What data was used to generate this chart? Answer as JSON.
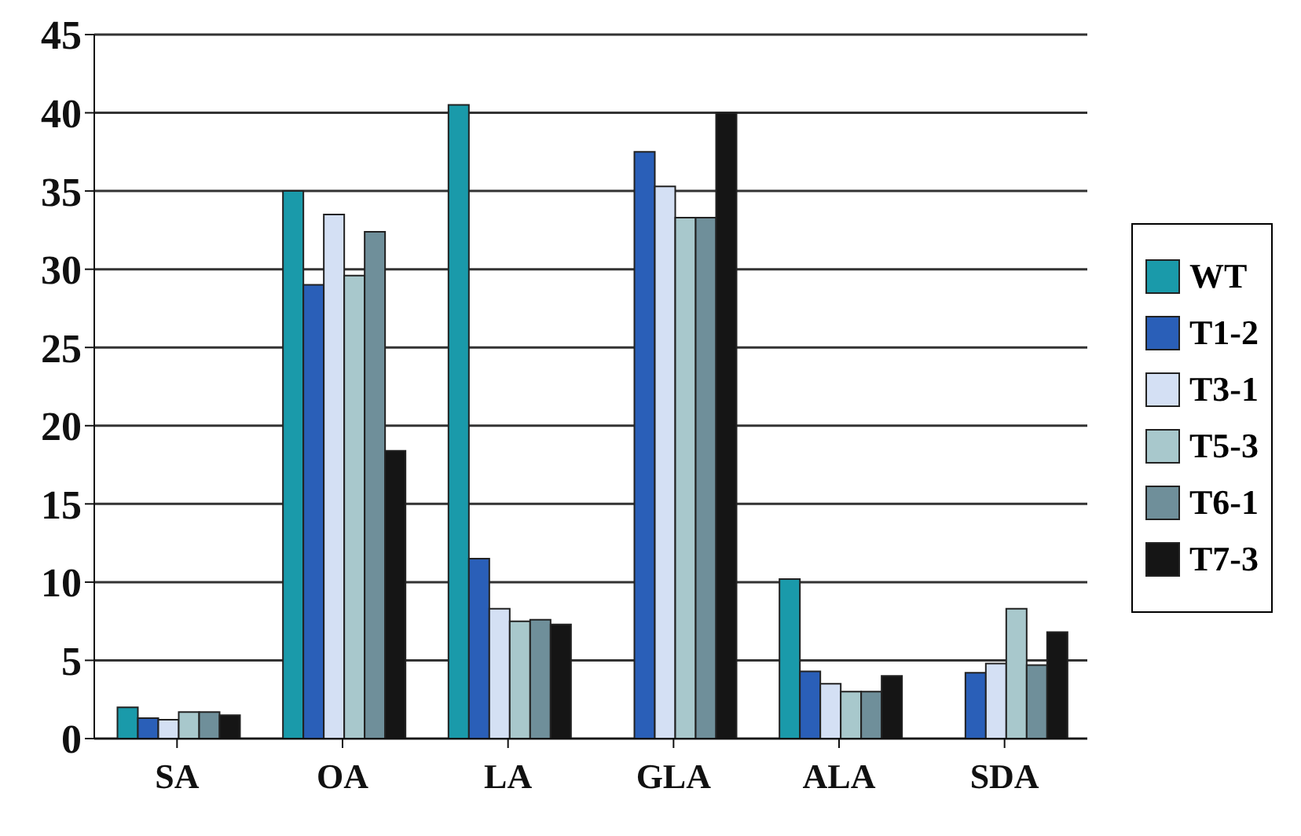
{
  "chart_data": {
    "type": "bar",
    "categories": [
      "SA",
      "OA",
      "LA",
      "GLA",
      "ALA",
      "SDA"
    ],
    "series": [
      {
        "name": "WT",
        "color": "#1a9aaa",
        "values": [
          2,
          35,
          40.5,
          0,
          10.2,
          0
        ]
      },
      {
        "name": "T1-2",
        "color": "#2a5fb8",
        "values": [
          1.3,
          29,
          11.5,
          37.5,
          4.3,
          4.2
        ]
      },
      {
        "name": "T3-1",
        "color": "#d4e0f4",
        "values": [
          1.2,
          33.5,
          8.3,
          35.3,
          3.5,
          4.8
        ]
      },
      {
        "name": "T5-3",
        "color": "#a8c8cc",
        "values": [
          1.7,
          29.6,
          7.5,
          33.3,
          3,
          8.3
        ]
      },
      {
        "name": "T6-1",
        "color": "#6f8f9a",
        "values": [
          1.7,
          32.4,
          7.6,
          33.3,
          3,
          4.7
        ]
      },
      {
        "name": "T7-3",
        "color": "#151515",
        "values": [
          1.5,
          18.4,
          7.3,
          40,
          4,
          6.8
        ]
      }
    ],
    "ylim": [
      0,
      45
    ],
    "yticks": [
      0,
      5,
      10,
      15,
      20,
      25,
      30,
      35,
      40,
      45
    ],
    "grid": "y",
    "legend": "right"
  }
}
